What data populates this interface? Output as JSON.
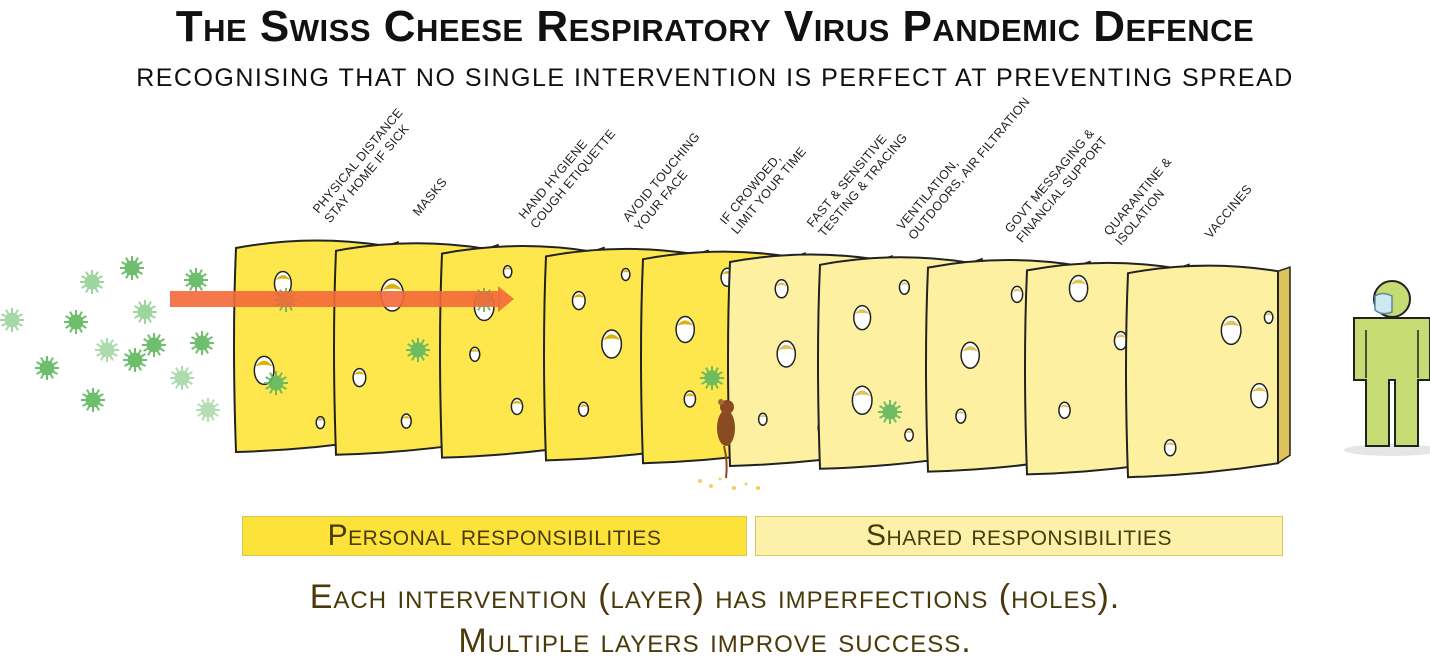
{
  "title": "The Swiss Cheese Respiratory Virus Pandemic Defence",
  "subtitle": "Recognising that no single intervention is perfect at preventing spread",
  "layers": [
    {
      "label_lines": [
        "Physical distance",
        "stay home if sick"
      ],
      "group": "personal"
    },
    {
      "label_lines": [
        "Masks"
      ],
      "group": "personal"
    },
    {
      "label_lines": [
        "Hand hygiene",
        "cough etiquette"
      ],
      "group": "personal"
    },
    {
      "label_lines": [
        "Avoid touching",
        "your face"
      ],
      "group": "personal"
    },
    {
      "label_lines": [
        "If crowded,",
        "limit your time"
      ],
      "group": "personal"
    },
    {
      "label_lines": [
        "Fast & sensitive",
        "testing & tracing"
      ],
      "group": "shared"
    },
    {
      "label_lines": [
        "Ventilation,",
        "outdoors, air filtration"
      ],
      "group": "shared"
    },
    {
      "label_lines": [
        "Govt messaging &",
        "financial support"
      ],
      "group": "shared"
    },
    {
      "label_lines": [
        "Quarantine &",
        "isolation"
      ],
      "group": "shared"
    },
    {
      "label_lines": [
        "Vaccines"
      ],
      "group": "shared"
    }
  ],
  "bands": {
    "personal": "Personal responsibilities",
    "shared": "Shared responsibilities"
  },
  "caption": {
    "line1": "Each intervention (layer) has imperfections (holes).",
    "line2": "Multiple layers improve success."
  },
  "colors": {
    "personal_cheese": "#fde74c",
    "personal_edge": "#d9b20a",
    "shared_cheese": "#fdf0a0",
    "shared_edge": "#dcc45a",
    "virus": "#5fb85f",
    "arrow": "#f4693a",
    "person": "#c6db74",
    "mouse": "#8a4b22"
  },
  "icons": [
    "virus-icon",
    "mouse-icon",
    "person-icon",
    "mask-icon",
    "arrow-icon"
  ]
}
